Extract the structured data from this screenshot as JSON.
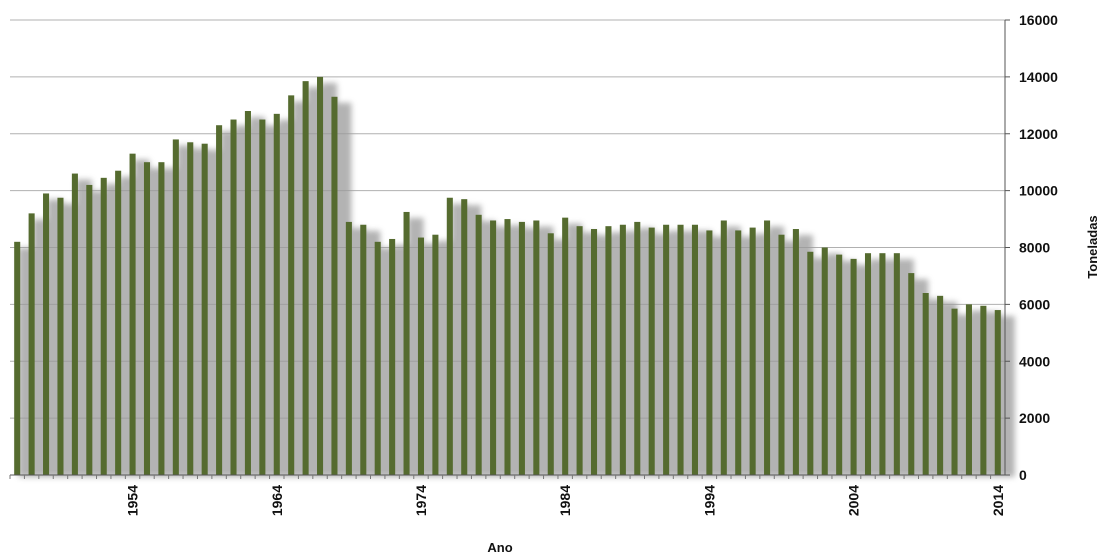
{
  "chart_data": {
    "type": "bar",
    "xlabel": "Ano",
    "ylabel": "Toneladas",
    "ylim": [
      0,
      16000
    ],
    "yticks": [
      0,
      2000,
      4000,
      6000,
      8000,
      10000,
      12000,
      14000,
      16000
    ],
    "xtick_labels": [
      "1954",
      "1964",
      "1974",
      "1984",
      "1994",
      "2004",
      "2014"
    ],
    "grid": true,
    "y_axis_side": "right",
    "colors": {
      "bar": "#556b2f",
      "shadow": "#9a9a9a",
      "grid": "#b0b0b0"
    },
    "categories": [
      1946,
      1947,
      1948,
      1949,
      1950,
      1951,
      1952,
      1953,
      1954,
      1955,
      1956,
      1957,
      1958,
      1959,
      1960,
      1961,
      1962,
      1963,
      1964,
      1965,
      1966,
      1967,
      1968,
      1969,
      1970,
      1971,
      1972,
      1973,
      1974,
      1975,
      1976,
      1977,
      1978,
      1979,
      1980,
      1981,
      1982,
      1983,
      1984,
      1985,
      1986,
      1987,
      1988,
      1989,
      1990,
      1991,
      1992,
      1993,
      1994,
      1995,
      1996,
      1997,
      1998,
      1999,
      2000,
      2001,
      2002,
      2003,
      2004,
      2005,
      2006,
      2007,
      2008,
      2009,
      2010,
      2011,
      2012,
      2013,
      2014
    ],
    "values": [
      8200,
      9200,
      9900,
      9750,
      10600,
      10200,
      10450,
      10700,
      11300,
      11000,
      11000,
      11800,
      11700,
      11650,
      12300,
      12500,
      12800,
      12500,
      12700,
      13350,
      13850,
      14000,
      13300,
      8900,
      8800,
      8200,
      8300,
      9250,
      8350,
      8450,
      9750,
      9700,
      9150,
      8950,
      9000,
      8900,
      8950,
      8500,
      9050,
      8750,
      8650,
      8750,
      8800,
      8900,
      8700,
      8800,
      8800,
      8800,
      8600,
      8950,
      8600,
      8700,
      8950,
      8450,
      8650,
      7850,
      8000,
      7750,
      7600,
      7800,
      7800,
      7800,
      7100,
      6400,
      6300,
      5850,
      6000,
      5950,
      5800
    ]
  }
}
